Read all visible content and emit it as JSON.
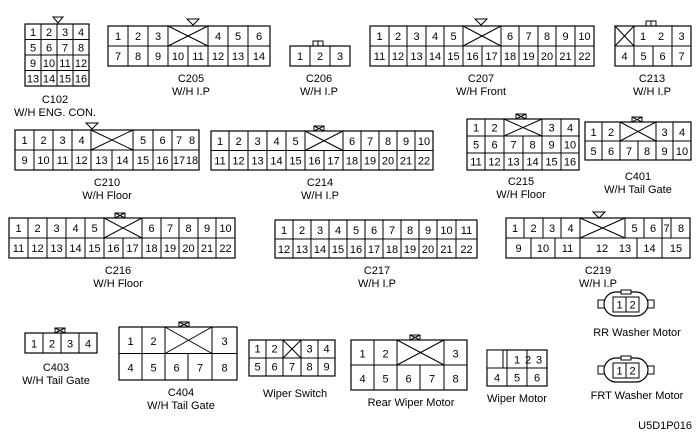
{
  "connectors": [
    {
      "id": "c102",
      "name": "C102",
      "harness": "W/H ENG. CON.",
      "rows": [
        [
          "1",
          "2",
          "3",
          "4"
        ],
        [
          "5",
          "6",
          "7",
          "8"
        ],
        [
          "9",
          "10",
          "11",
          "12"
        ],
        [
          "13",
          "14",
          "15",
          "16"
        ]
      ]
    },
    {
      "id": "c205",
      "name": "C205",
      "harness": "W/H I.P",
      "rows": [
        [
          "1",
          "2",
          "3",
          "",
          "4",
          "5",
          "6"
        ],
        [
          "7",
          "8",
          "9",
          "10",
          "11",
          "12",
          "13",
          "14"
        ]
      ]
    },
    {
      "id": "c206",
      "name": "C206",
      "harness": "W/H I.P",
      "rows": [
        [
          "1",
          "2",
          "3"
        ]
      ]
    },
    {
      "id": "c207",
      "name": "C207",
      "harness": "W/H Front",
      "rows": [
        [
          "1",
          "2",
          "3",
          "4",
          "5",
          "",
          "6",
          "7",
          "8",
          "9",
          "10"
        ],
        [
          "11",
          "12",
          "13",
          "14",
          "15",
          "16",
          "17",
          "18",
          "19",
          "20",
          "21",
          "22"
        ]
      ]
    },
    {
      "id": "c213",
      "name": "C213",
      "harness": "W/H I.P",
      "rows": [
        [
          "1",
          "2",
          "3"
        ],
        [
          "4",
          "5",
          "6",
          "7"
        ]
      ]
    },
    {
      "id": "c210",
      "name": "C210",
      "harness": "W/H Floor",
      "rows": [
        [
          "1",
          "2",
          "3",
          "4",
          "",
          "5",
          "6",
          "7",
          "8"
        ],
        [
          "9",
          "10",
          "11",
          "12",
          "13",
          "14",
          "15",
          "16",
          "17",
          "18"
        ]
      ]
    },
    {
      "id": "c214",
      "name": "C214",
      "harness": "W/H I.P",
      "rows": [
        [
          "1",
          "2",
          "3",
          "4",
          "5",
          "",
          "6",
          "7",
          "8",
          "9",
          "10"
        ],
        [
          "11",
          "12",
          "13",
          "14",
          "15",
          "16",
          "17",
          "18",
          "19",
          "20",
          "21",
          "22"
        ]
      ]
    },
    {
      "id": "c215",
      "name": "C215",
      "harness": "W/H Floor",
      "rows": [
        [
          "1",
          "2",
          "",
          "3",
          "4"
        ],
        [
          "5",
          "6",
          "7",
          "8",
          "9",
          "10"
        ],
        [
          "11",
          "12",
          "13",
          "14",
          "15",
          "16"
        ]
      ]
    },
    {
      "id": "c401",
      "name": "C401",
      "harness": "W/H Tail Gate",
      "rows": [
        [
          "1",
          "2",
          "",
          "3",
          "4"
        ],
        [
          "5",
          "6",
          "7",
          "8",
          "9",
          "10"
        ]
      ]
    },
    {
      "id": "c216",
      "name": "C216",
      "harness": "W/H Floor",
      "rows": [
        [
          "1",
          "2",
          "3",
          "4",
          "5",
          "",
          "6",
          "7",
          "8",
          "9",
          "10"
        ],
        [
          "11",
          "12",
          "13",
          "14",
          "15",
          "16",
          "17",
          "18",
          "19",
          "20",
          "21",
          "22"
        ]
      ]
    },
    {
      "id": "c217",
      "name": "C217",
      "harness": "W/H I.P",
      "rows": [
        [
          "1",
          "2",
          "3",
          "4",
          "5",
          "6",
          "7",
          "8",
          "9",
          "10",
          "11"
        ],
        [
          "12",
          "13",
          "14",
          "15",
          "16",
          "17",
          "18",
          "19",
          "20",
          "21",
          "22"
        ]
      ]
    },
    {
      "id": "c219",
      "name": "C219",
      "harness": "W/H I.P",
      "rows": [
        [
          "1",
          "2",
          "3",
          "4",
          "",
          "5",
          "6",
          "7",
          "8"
        ],
        [
          "9",
          "10",
          "11",
          "12",
          "13",
          "14",
          "15"
        ]
      ]
    },
    {
      "id": "rr_washer",
      "name": "RR Washer Motor",
      "harness": "",
      "rows": [
        [
          "1",
          "2"
        ]
      ]
    },
    {
      "id": "c403",
      "name": "C403",
      "harness": "W/H Tail Gate",
      "rows": [
        [
          "1",
          "2",
          "3",
          "4"
        ]
      ]
    },
    {
      "id": "c404",
      "name": "C404",
      "harness": "W/H Tail Gate",
      "rows": [
        [
          "1",
          "2",
          "",
          "3"
        ],
        [
          "4",
          "5",
          "6",
          "7",
          "8"
        ]
      ]
    },
    {
      "id": "wiper_switch",
      "name": "Wiper Switch",
      "harness": "",
      "rows": [
        [
          "1",
          "2",
          "",
          "3",
          "4"
        ],
        [
          "5",
          "6",
          "7",
          "8",
          "9"
        ]
      ]
    },
    {
      "id": "rear_wiper",
      "name": "Rear Wiper Motor",
      "harness": "",
      "rows": [
        [
          "1",
          "2",
          "",
          "3"
        ],
        [
          "4",
          "5",
          "6",
          "7",
          "8"
        ]
      ]
    },
    {
      "id": "wiper_motor",
      "name": "Wiper Motor",
      "harness": "",
      "rows": [
        [
          "1",
          "2",
          "3"
        ],
        [
          "4",
          "5",
          "6"
        ]
      ]
    },
    {
      "id": "frt_washer",
      "name": "FRT Washer Motor",
      "harness": "",
      "rows": [
        [
          "1",
          "2"
        ]
      ]
    }
  ],
  "figure_code": "U5D1P016"
}
